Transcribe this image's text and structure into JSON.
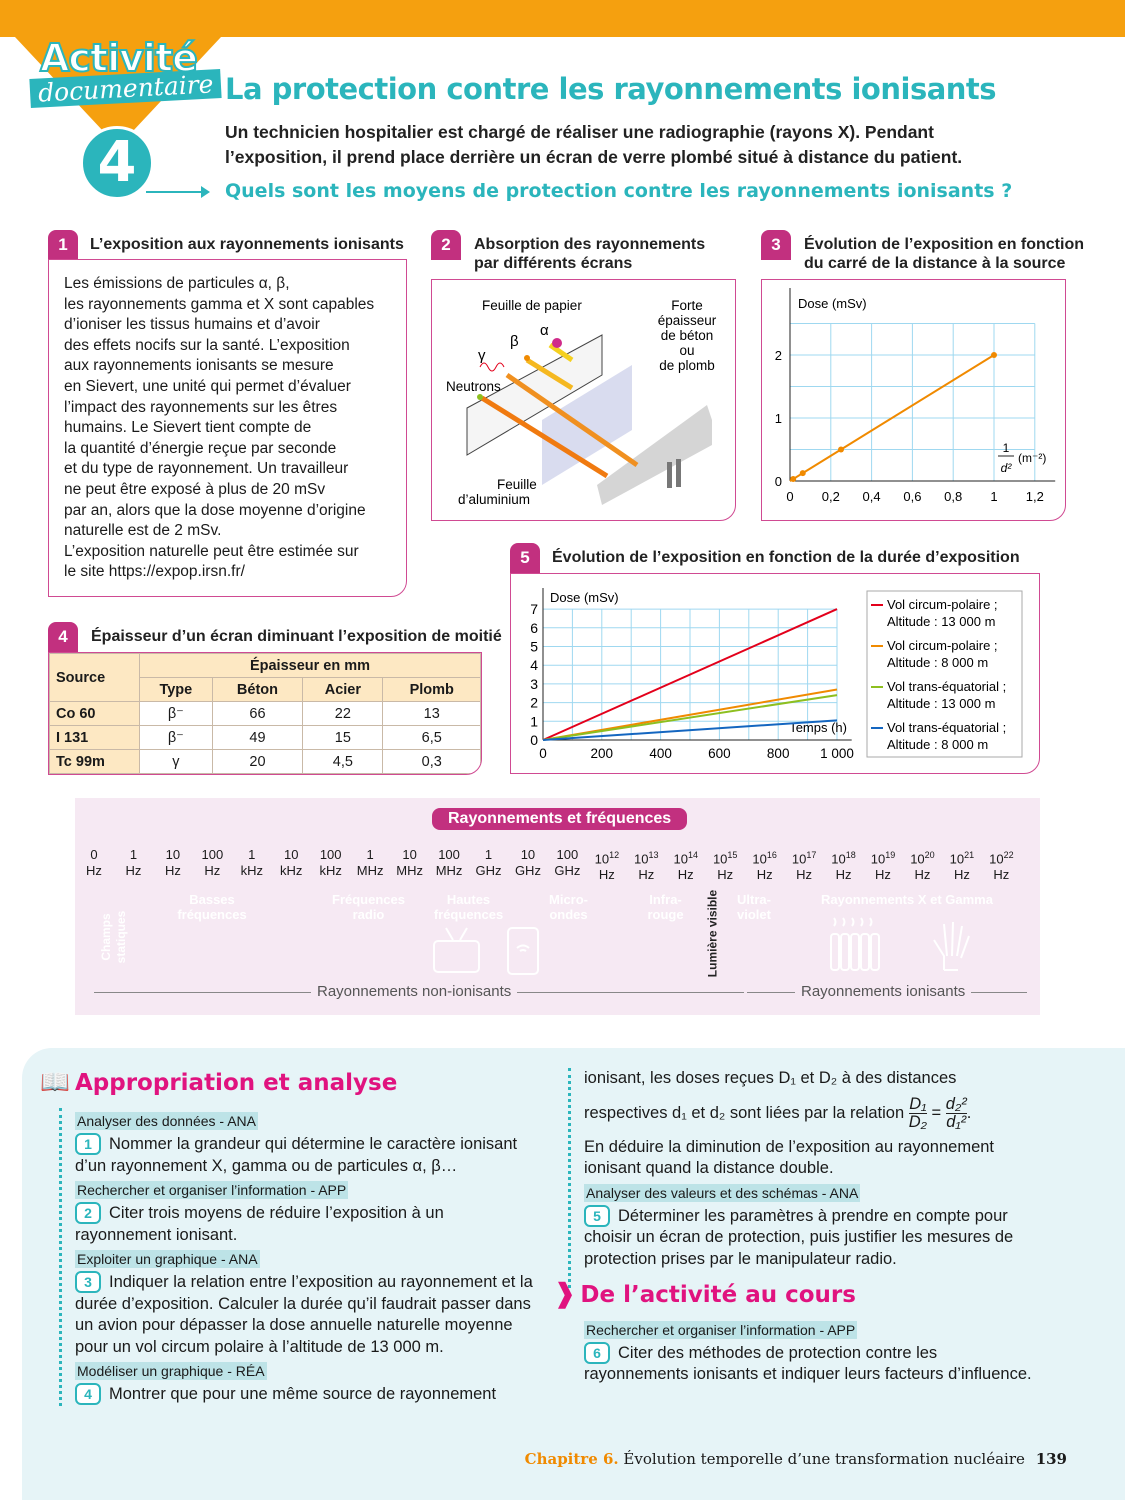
{
  "header": {
    "badge_line1": "Activité",
    "badge_line2": "documentaire",
    "activity_number": "4",
    "title": "La protection contre les rayonnements ionisants",
    "intro": "Un technicien hospitalier est chargé de réaliser une radiographie (rayons X).  Pendant l’exposition, il prend place derrière un écran de verre plombé situé à distance du patient.",
    "question": "Quels sont les moyens de protection contre les rayonnements ionisants ?"
  },
  "doc1": {
    "number": "1",
    "title": "L’exposition aux rayonnements ionisants",
    "lines": [
      "Les émissions de particules α, β,",
      "les rayonnements gamma et X sont capables",
      "d’ioniser les tissus humains et d’avoir",
      "des effets nocifs sur la santé. L’exposition",
      "aux rayonnements ionisants se mesure",
      "en Sievert, une unité qui permet d’évaluer",
      "l’impact des rayonnements sur les êtres",
      "humains. Le Sievert tient compte de",
      "la quantité d’énergie reçue par seconde",
      "et du type de rayonnement. Un travailleur",
      "ne peut être exposé à plus de 20 mSv",
      "par an, alors que la dose moyenne d’origine",
      "naturelle est de 2 mSv.",
      "L’exposition naturelle peut être estimée sur",
      "le site https://expop.irsn.fr/"
    ]
  },
  "doc2": {
    "number": "2",
    "title_line1": "Absorption des rayonnements",
    "title_line2": "par différents écrans",
    "labels": {
      "paper": "Feuille de papier",
      "alpha": "α",
      "beta": "β",
      "gamma": "γ",
      "neutrons": "Neutrons",
      "aluminium_1": "Feuille",
      "aluminium_2": "d’aluminium",
      "concrete": [
        "Forte",
        "épaisseur",
        "de béton",
        "ou",
        "de plomb"
      ]
    }
  },
  "doc3": {
    "number": "3",
    "title_line1": "Évolution de l’exposition en fonction",
    "title_line2": "du carré de la distance à la source",
    "chart_data": {
      "type": "line",
      "ylabel": "Dose (mSv)",
      "xlabel_num": "1",
      "xlabel_den": "d²",
      "xlabel_unit": "(m⁻²)",
      "xlim": [
        0,
        1.2
      ],
      "ylim": [
        0,
        2.5
      ],
      "xticks": [
        "0",
        "0,2",
        "0,4",
        "0,6",
        "0,8",
        "1",
        "1,2"
      ],
      "yticks": [
        "0",
        "1",
        "2"
      ],
      "grid": true,
      "color": "#f08a00",
      "x": [
        0.0156,
        0.0625,
        0.25,
        1
      ],
      "y": [
        0.031,
        0.125,
        0.5,
        2
      ]
    }
  },
  "doc4": {
    "number": "4",
    "title": "Épaisseur d’un écran diminuant l’exposition de moitié",
    "table": {
      "h_source": "Source",
      "h_group": "Épaisseur en mm",
      "columns": [
        "Type",
        "Béton",
        "Acier",
        "Plomb"
      ],
      "rows": [
        {
          "source": "Co 60",
          "cells": [
            "β⁻",
            "66",
            "22",
            "13"
          ]
        },
        {
          "source": "I 131",
          "cells": [
            "β⁻",
            "49",
            "15",
            "6,5"
          ]
        },
        {
          "source": "Tc 99m",
          "cells": [
            "γ",
            "20",
            "4,5",
            "0,3"
          ]
        }
      ]
    }
  },
  "doc5": {
    "number": "5",
    "title": "Évolution de l’exposition en fonction de la durée d’exposition",
    "chart_data": {
      "type": "line",
      "ylabel": "Dose (mSv)",
      "xlabel": "Temps (h)",
      "xlim": [
        0,
        1000
      ],
      "ylim": [
        0,
        7
      ],
      "xticks": [
        "0",
        "200",
        "400",
        "600",
        "800",
        "1 000"
      ],
      "yticks": [
        "0",
        "1",
        "2",
        "3",
        "4",
        "5",
        "6",
        "7"
      ],
      "grid": true,
      "legend": "right",
      "x": [
        0,
        1000
      ],
      "series": [
        {
          "name": "Vol circum-polaire ;",
          "name2": "Altitude : 13 000 m",
          "color": "#e3001b",
          "values": [
            0,
            7
          ]
        },
        {
          "name": "Vol circum-polaire ;",
          "name2": "Altitude : 8 000 m",
          "color": "#f08a00",
          "values": [
            0,
            2.7
          ]
        },
        {
          "name": "Vol trans-équatorial ;",
          "name2": "Altitude : 13 000 m",
          "color": "#8dbf1f",
          "values": [
            0,
            2.4
          ]
        },
        {
          "name": "Vol trans-équatorial ;",
          "name2": "Altitude : 8 000 m",
          "color": "#1466c0",
          "values": [
            0,
            1.05
          ]
        }
      ]
    }
  },
  "spectrum": {
    "title": "Rayonnements et fréquences",
    "ticks": [
      {
        "t": "0",
        "u": "Hz"
      },
      {
        "t": "1",
        "u": "Hz"
      },
      {
        "t": "10",
        "u": "Hz"
      },
      {
        "t": "100",
        "u": "Hz"
      },
      {
        "t": "1",
        "u": "kHz"
      },
      {
        "t": "10",
        "u": "kHz"
      },
      {
        "t": "100",
        "u": "kHz"
      },
      {
        "t": "1",
        "u": "MHz"
      },
      {
        "t": "10",
        "u": "MHz"
      },
      {
        "t": "100",
        "u": "MHz"
      },
      {
        "t": "1",
        "u": "GHz"
      },
      {
        "t": "10",
        "u": "GHz"
      },
      {
        "t": "100",
        "u": "GHz"
      },
      {
        "t": "10",
        "s": "12",
        "u": "Hz"
      },
      {
        "t": "10",
        "s": "13",
        "u": "Hz"
      },
      {
        "t": "10",
        "s": "14",
        "u": "Hz"
      },
      {
        "t": "10",
        "s": "15",
        "u": "Hz"
      },
      {
        "t": "10",
        "s": "16",
        "u": "Hz"
      },
      {
        "t": "10",
        "s": "17",
        "u": "Hz"
      },
      {
        "t": "10",
        "s": "18",
        "u": "Hz"
      },
      {
        "t": "10",
        "s": "19",
        "u": "Hz"
      },
      {
        "t": "10",
        "s": "20",
        "u": "Hz"
      },
      {
        "t": "10",
        "s": "21",
        "u": "Hz"
      },
      {
        "t": "10",
        "s": "22",
        "u": "Hz"
      }
    ],
    "bands": {
      "static": "Champs statiques",
      "low_1": "Basses",
      "low_2": "fréquences",
      "radio_1": "Fréquences",
      "radio_2": "radio",
      "hf_1": "Hautes",
      "hf_2": "fréquences",
      "micro_1": "Micro-",
      "micro_2": "ondes",
      "ir_1": "Infra-",
      "ir_2": "rouge",
      "visible": "Lumière visible",
      "uv_1": "Ultra-",
      "uv_2": "violet",
      "xg": "Rayonnements X et Gamma"
    },
    "band_colors": {
      "static": "#4d7f8e",
      "low": "#0aa0e0",
      "radio": "#0a6fba",
      "ir": "#e3000f",
      "visible": "#ffe000",
      "uv": "#a3338f",
      "xg": "#8fbf1f"
    },
    "non_ionizing": "Rayonnements non-ionisants",
    "ionizing": "Rayonnements ionisants"
  },
  "questions": {
    "section_title": "Appropriation et analyse",
    "s1": "Analyser des données - ANA",
    "q1": "Nommer la grandeur qui détermine le caractère ionisant d’un rayonnement X, gamma ou de particules α, β…",
    "s2": "Rechercher et organiser l’information - APP",
    "q2": "Citer trois moyens de réduire l’exposition à un rayonnement ionisant.",
    "s3": "Exploiter un graphique - ANA",
    "q3": "Indiquer la relation entre l’exposition au rayonnement et la durée d’exposition. Calculer la durée qu’il faudrait passer dans un avion pour dépasser la dose annuelle naturelle moyenne pour un vol circum polaire à l’altitude de 13 000 m.",
    "s4": "Modéliser un graphique - RÉA",
    "q4a": "Montrer que pour une même source de rayonnement",
    "q4b": "ionisant, les doses reçues D₁ et D₂ à des distances",
    "q4c": "respectives d₁ et d₂ sont liées par la relation",
    "f_num1": "D₁",
    "f_den1": "D₂",
    "f_num2": "d₂²",
    "f_den2": "d₁²",
    "q4d": "En déduire la diminution de l’exposition au rayonnement ionisant quand la distance double.",
    "s5": "Analyser des valeurs et des schémas - ANA",
    "q5": "Déterminer les paramètres à prendre en compte pour choisir un écran de protection, puis justifier les mesures de protection prises par le manipulateur radio.",
    "course_title": "De l’activité au cours",
    "s6": "Rechercher et organiser l’information - APP",
    "q6": "Citer des méthodes de protection contre les rayonnements ionisants et indiquer leurs facteurs d’influence.",
    "nums": [
      "1",
      "2",
      "3",
      "4",
      "5",
      "6"
    ]
  },
  "footer": {
    "chapter": "Chapitre 6.",
    "title": "Évolution temporelle d’une transformation nucléaire",
    "page": "139"
  },
  "colors": {
    "accent": "#2bb5bc",
    "orange": "#f5a00f",
    "magenta": "#c2307f"
  }
}
